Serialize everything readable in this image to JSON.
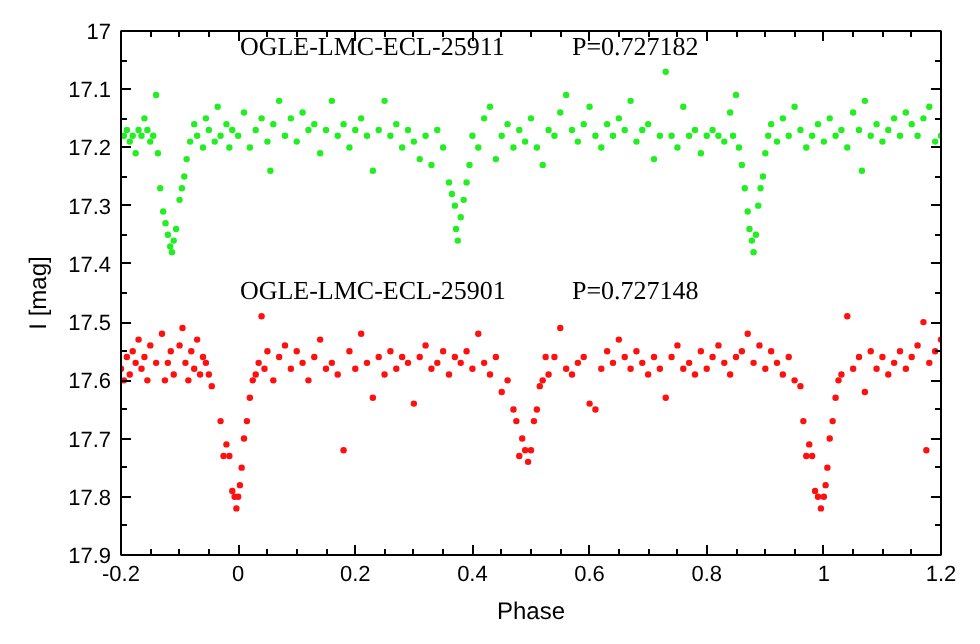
{
  "chart_data": {
    "type": "scatter",
    "xlabel": "Phase",
    "ylabel": "I [mag]",
    "xlim": [
      -0.2,
      1.2
    ],
    "ylim": [
      17.9,
      17
    ],
    "xticks": [
      -0.2,
      0,
      0.2,
      0.4,
      0.6,
      0.8,
      1,
      1.2
    ],
    "yticks": [
      17,
      17.1,
      17.2,
      17.3,
      17.4,
      17.5,
      17.6,
      17.7,
      17.8,
      17.9
    ],
    "grid": false,
    "marker": "circle",
    "annotations": [
      "P=0.727182",
      "P=0.727148"
    ],
    "series": [
      {
        "name": "OGLE-LMC-ECL-25911",
        "color": "#22ee22",
        "x": [
          -0.195,
          -0.19,
          -0.185,
          -0.18,
          -0.175,
          -0.17,
          -0.165,
          -0.16,
          -0.155,
          -0.15,
          -0.145,
          -0.14,
          -0.137,
          -0.133,
          -0.128,
          -0.124,
          -0.12,
          -0.116,
          -0.113,
          -0.11,
          -0.106,
          -0.1,
          -0.096,
          -0.092,
          -0.088,
          -0.082,
          -0.075,
          -0.07,
          -0.06,
          -0.055,
          -0.05,
          -0.04,
          -0.035,
          -0.03,
          -0.02,
          -0.015,
          -0.01,
          0.0,
          0.01,
          0.02,
          0.03,
          0.04,
          0.05,
          0.055,
          0.06,
          0.07,
          0.08,
          0.09,
          0.1,
          0.11,
          0.12,
          0.13,
          0.14,
          0.15,
          0.16,
          0.17,
          0.18,
          0.19,
          0.2,
          0.21,
          0.22,
          0.23,
          0.24,
          0.25,
          0.26,
          0.27,
          0.28,
          0.29,
          0.3,
          0.31,
          0.32,
          0.33,
          0.34,
          0.35,
          0.36,
          0.365,
          0.37,
          0.372,
          0.375,
          0.38,
          0.385,
          0.39,
          0.395,
          0.4,
          0.41,
          0.42,
          0.43,
          0.44,
          0.45,
          0.46,
          0.47,
          0.48,
          0.49,
          0.5,
          0.51,
          0.52,
          0.53,
          0.54,
          0.55,
          0.56,
          0.57,
          0.58,
          0.59,
          0.6,
          0.61,
          0.62,
          0.63,
          0.64,
          0.65,
          0.66,
          0.67,
          0.68,
          0.69,
          0.7,
          0.71,
          0.72,
          0.73,
          0.74,
          0.75,
          0.76,
          0.77,
          0.78,
          0.79,
          0.8,
          0.81,
          0.82,
          0.83,
          0.84,
          0.845,
          0.85,
          0.855,
          0.86,
          0.865,
          0.87,
          0.873,
          0.877,
          0.88,
          0.884,
          0.888,
          0.892,
          0.896,
          0.9,
          0.905,
          0.91,
          0.92,
          0.93,
          0.94,
          0.95,
          0.96,
          0.97,
          0.98,
          0.99,
          1.0,
          1.01,
          1.02,
          1.03,
          1.04,
          1.05,
          1.06,
          1.065,
          1.07,
          1.08,
          1.09,
          1.1,
          1.11,
          1.12,
          1.13,
          1.14,
          1.15,
          1.16,
          1.17,
          1.18,
          1.19,
          1.2
        ],
        "values": [
          17.18,
          17.17,
          17.19,
          17.18,
          17.21,
          17.17,
          17.18,
          17.15,
          17.17,
          17.19,
          17.18,
          17.11,
          17.21,
          17.27,
          17.31,
          17.33,
          17.35,
          17.37,
          17.38,
          17.36,
          17.34,
          17.29,
          17.27,
          17.25,
          17.22,
          17.19,
          17.16,
          17.18,
          17.2,
          17.15,
          17.17,
          17.19,
          17.13,
          17.18,
          17.16,
          17.2,
          17.17,
          17.18,
          17.14,
          17.2,
          17.17,
          17.15,
          17.19,
          17.24,
          17.16,
          17.12,
          17.18,
          17.15,
          17.19,
          17.14,
          17.17,
          17.16,
          17.21,
          17.17,
          17.12,
          17.18,
          17.16,
          17.2,
          17.17,
          17.15,
          17.18,
          17.24,
          17.17,
          17.12,
          17.18,
          17.16,
          17.2,
          17.17,
          17.19,
          17.22,
          17.18,
          17.23,
          17.17,
          17.2,
          17.26,
          17.28,
          17.3,
          17.34,
          17.36,
          17.32,
          17.29,
          17.26,
          17.23,
          17.18,
          17.2,
          17.15,
          17.13,
          17.22,
          17.18,
          17.16,
          17.2,
          17.17,
          17.19,
          17.15,
          17.2,
          17.23,
          17.17,
          17.18,
          17.14,
          17.11,
          17.17,
          17.19,
          17.16,
          17.13,
          17.18,
          17.2,
          17.16,
          17.18,
          17.15,
          17.17,
          17.12,
          17.19,
          17.17,
          17.16,
          17.22,
          17.18,
          17.07,
          17.18,
          17.2,
          17.13,
          17.18,
          17.17,
          17.21,
          17.18,
          17.17,
          17.18,
          17.19,
          17.14,
          17.18,
          17.11,
          17.2,
          17.23,
          17.27,
          17.31,
          17.34,
          17.36,
          17.38,
          17.35,
          17.3,
          17.27,
          17.25,
          17.21,
          17.18,
          17.16,
          17.19,
          17.15,
          17.18,
          17.13,
          17.17,
          17.2,
          17.18,
          17.16,
          17.19,
          17.15,
          17.18,
          17.17,
          17.2,
          17.14,
          17.17,
          17.24,
          17.12,
          17.18,
          17.16,
          17.19,
          17.17,
          17.15,
          17.18,
          17.14,
          17.16,
          17.18,
          17.15,
          17.13,
          17.19,
          17.18
        ]
      },
      {
        "name": "OGLE-LMC-ECL-25901",
        "color": "#ff1010",
        "x": [
          -0.2,
          -0.195,
          -0.19,
          -0.185,
          -0.18,
          -0.175,
          -0.17,
          -0.165,
          -0.16,
          -0.155,
          -0.15,
          -0.14,
          -0.13,
          -0.125,
          -0.12,
          -0.115,
          -0.11,
          -0.1,
          -0.095,
          -0.09,
          -0.085,
          -0.08,
          -0.075,
          -0.07,
          -0.065,
          -0.06,
          -0.055,
          -0.05,
          -0.045,
          -0.03,
          -0.025,
          -0.02,
          -0.015,
          -0.01,
          -0.006,
          -0.003,
          0.0,
          0.003,
          0.006,
          0.01,
          0.015,
          0.02,
          0.025,
          0.03,
          0.035,
          0.04,
          0.045,
          0.05,
          0.06,
          0.07,
          0.08,
          0.09,
          0.1,
          0.11,
          0.12,
          0.13,
          0.14,
          0.15,
          0.16,
          0.17,
          0.18,
          0.19,
          0.2,
          0.21,
          0.22,
          0.23,
          0.24,
          0.25,
          0.26,
          0.27,
          0.28,
          0.29,
          0.3,
          0.31,
          0.32,
          0.33,
          0.34,
          0.35,
          0.36,
          0.37,
          0.38,
          0.39,
          0.4,
          0.41,
          0.42,
          0.43,
          0.44,
          0.45,
          0.46,
          0.47,
          0.475,
          0.48,
          0.485,
          0.49,
          0.495,
          0.5,
          0.505,
          0.51,
          0.515,
          0.52,
          0.525,
          0.53,
          0.54,
          0.55,
          0.56,
          0.57,
          0.58,
          0.59,
          0.6,
          0.61,
          0.62,
          0.63,
          0.64,
          0.65,
          0.66,
          0.67,
          0.68,
          0.69,
          0.7,
          0.71,
          0.72,
          0.73,
          0.74,
          0.75,
          0.76,
          0.77,
          0.78,
          0.79,
          0.8,
          0.81,
          0.82,
          0.83,
          0.84,
          0.85,
          0.86,
          0.87,
          0.88,
          0.89,
          0.9,
          0.91,
          0.92,
          0.93,
          0.94,
          0.95,
          0.96,
          0.965,
          0.97,
          0.975,
          0.98,
          0.985,
          0.99,
          0.995,
          1.0,
          1.003,
          1.006,
          1.01,
          1.015,
          1.02,
          1.025,
          1.03,
          1.04,
          1.05,
          1.06,
          1.07,
          1.08,
          1.09,
          1.1,
          1.11,
          1.12,
          1.13,
          1.14,
          1.15,
          1.16,
          1.17,
          1.175,
          1.18,
          1.19,
          1.2
        ],
        "values": [
          17.58,
          17.6,
          17.56,
          17.59,
          17.55,
          17.57,
          17.53,
          17.58,
          17.56,
          17.6,
          17.54,
          17.57,
          17.52,
          17.6,
          17.57,
          17.55,
          17.59,
          17.54,
          17.51,
          17.57,
          17.6,
          17.55,
          17.58,
          17.53,
          17.59,
          17.56,
          17.57,
          17.59,
          17.61,
          17.67,
          17.73,
          17.71,
          17.73,
          17.79,
          17.8,
          17.82,
          17.8,
          17.78,
          17.75,
          17.7,
          17.67,
          17.63,
          17.6,
          17.59,
          17.57,
          17.49,
          17.58,
          17.55,
          17.6,
          17.56,
          17.54,
          17.58,
          17.55,
          17.57,
          17.6,
          17.56,
          17.53,
          17.58,
          17.57,
          17.59,
          17.72,
          17.55,
          17.58,
          17.52,
          17.57,
          17.63,
          17.56,
          17.59,
          17.55,
          17.58,
          17.56,
          17.57,
          17.64,
          17.56,
          17.54,
          17.58,
          17.57,
          17.55,
          17.59,
          17.56,
          17.57,
          17.55,
          17.58,
          17.52,
          17.57,
          17.59,
          17.56,
          17.62,
          17.6,
          17.65,
          17.67,
          17.73,
          17.7,
          17.72,
          17.74,
          17.72,
          17.67,
          17.65,
          17.61,
          17.6,
          17.56,
          17.59,
          17.56,
          17.51,
          17.58,
          17.59,
          17.57,
          17.56,
          17.64,
          17.65,
          17.58,
          17.55,
          17.57,
          17.53,
          17.56,
          17.58,
          17.55,
          17.57,
          17.59,
          17.56,
          17.58,
          17.63,
          17.56,
          17.54,
          17.58,
          17.57,
          17.59,
          17.55,
          17.58,
          17.56,
          17.54,
          17.57,
          17.59,
          17.56,
          17.55,
          17.52,
          17.57,
          17.54,
          17.58,
          17.55,
          17.57,
          17.59,
          17.56,
          17.6,
          17.61,
          17.67,
          17.73,
          17.71,
          17.73,
          17.79,
          17.8,
          17.82,
          17.8,
          17.78,
          17.75,
          17.7,
          17.67,
          17.63,
          17.6,
          17.59,
          17.49,
          17.58,
          17.56,
          17.62,
          17.55,
          17.58,
          17.56,
          17.59,
          17.57,
          17.55,
          17.58,
          17.56,
          17.54,
          17.5,
          17.72,
          17.57,
          17.55,
          17.53
        ]
      }
    ]
  }
}
